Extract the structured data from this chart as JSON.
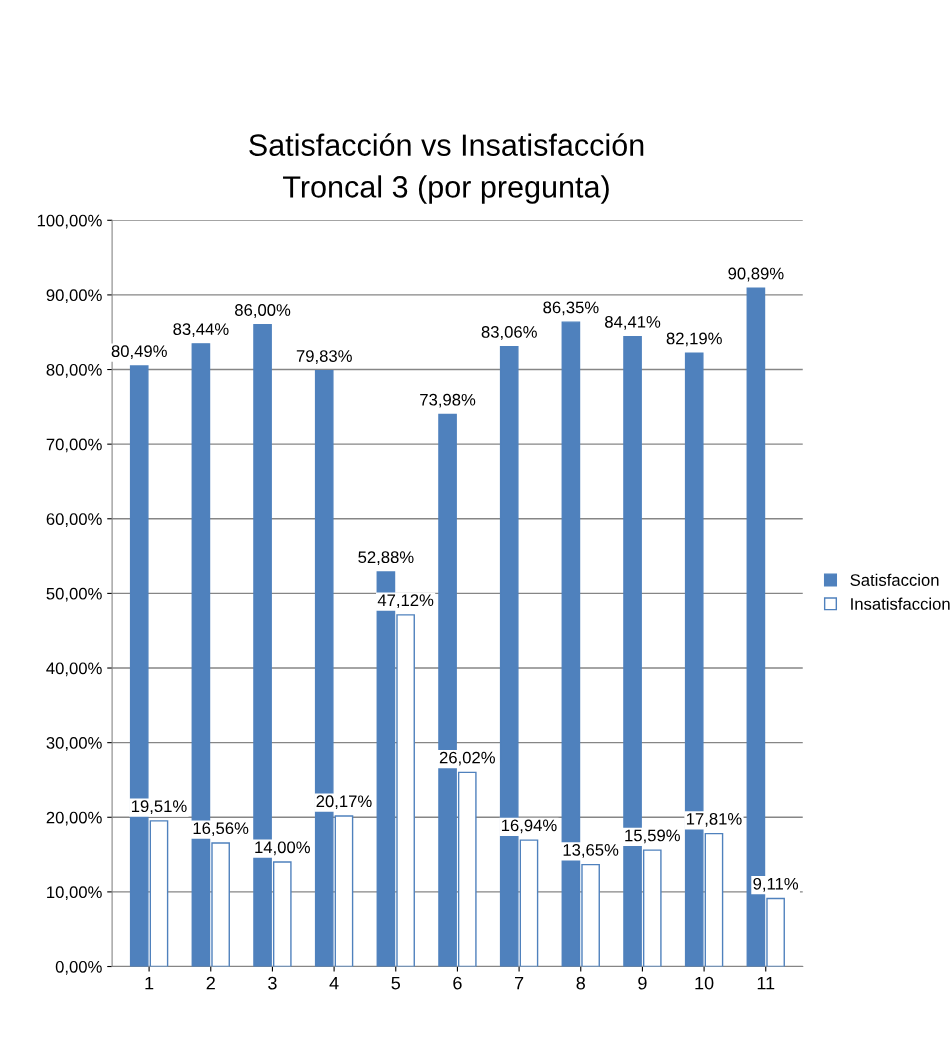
{
  "chart_data": {
    "type": "bar",
    "title": "Satisfacción vs Insatisfacción\nTroncal 3 (por pregunta)",
    "categories": [
      "1",
      "2",
      "3",
      "4",
      "5",
      "6",
      "7",
      "8",
      "9",
      "10",
      "11"
    ],
    "series": [
      {
        "name": "Satisfaccion",
        "color": "#4f81bd",
        "values": [
          80.49,
          83.44,
          86.0,
          79.83,
          52.88,
          73.98,
          83.06,
          86.35,
          84.41,
          82.19,
          90.89
        ],
        "value_labels": [
          "80,49%",
          "83,44%",
          "86,00%",
          "79,83%",
          "52,88%",
          "73,98%",
          "83,06%",
          "86,35%",
          "84,41%",
          "82,19%",
          "90,89%"
        ]
      },
      {
        "name": "Insatisfaccion",
        "color": "#ffffff",
        "values": [
          19.51,
          16.56,
          14.0,
          20.17,
          47.12,
          26.02,
          16.94,
          13.65,
          15.59,
          17.81,
          9.11
        ],
        "value_labels": [
          "19,51%",
          "16,56%",
          "14,00%",
          "20,17%",
          "47,12%",
          "26,02%",
          "16,94%",
          "13,65%",
          "15,59%",
          "17,81%",
          "9,11%"
        ]
      }
    ],
    "ylim": [
      0,
      100
    ],
    "yticks": [
      {
        "value": 0,
        "label": "0,00%"
      },
      {
        "value": 10,
        "label": "10,00%"
      },
      {
        "value": 20,
        "label": "20,00%"
      },
      {
        "value": 30,
        "label": "30,00%"
      },
      {
        "value": 40,
        "label": "40,00%"
      },
      {
        "value": 50,
        "label": "50,00%"
      },
      {
        "value": 60,
        "label": "60,00%"
      },
      {
        "value": 70,
        "label": "70,00%"
      },
      {
        "value": 80,
        "label": "80,00%"
      },
      {
        "value": 90,
        "label": "90,00%"
      },
      {
        "value": 100,
        "label": "100,00%"
      }
    ],
    "grid": "y",
    "legend": "right"
  }
}
